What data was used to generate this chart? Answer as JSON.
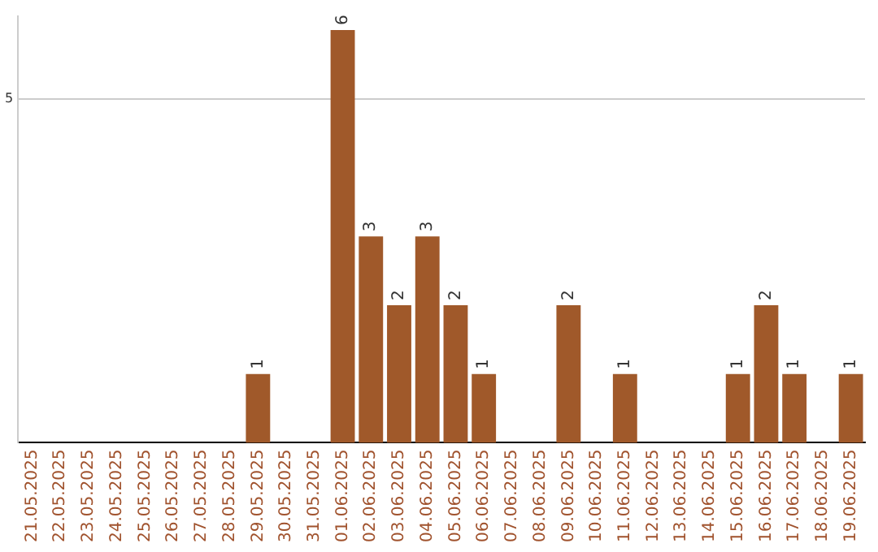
{
  "chart_data": {
    "type": "bar",
    "categories": [
      "21.05.2025",
      "22.05.2025",
      "23.05.2025",
      "24.05.2025",
      "25.05.2025",
      "26.05.2025",
      "27.05.2025",
      "28.05.2025",
      "29.05.2025",
      "30.05.2025",
      "31.05.2025",
      "01.06.2025",
      "02.06.2025",
      "03.06.2025",
      "04.06.2025",
      "05.06.2025",
      "06.06.2025",
      "07.06.2025",
      "08.06.2025",
      "09.06.2025",
      "10.06.2025",
      "11.06.2025",
      "12.06.2025",
      "13.06.2025",
      "14.06.2025",
      "15.06.2025",
      "16.06.2025",
      "17.06.2025",
      "18.06.2025",
      "19.06.2025"
    ],
    "values": [
      0,
      0,
      0,
      0,
      0,
      0,
      0,
      0,
      1,
      0,
      0,
      6,
      3,
      2,
      3,
      2,
      1,
      0,
      0,
      2,
      0,
      1,
      0,
      0,
      0,
      1,
      2,
      1,
      0,
      1
    ],
    "value_labels": [
      null,
      null,
      null,
      null,
      null,
      null,
      null,
      null,
      "1",
      null,
      null,
      "6",
      "3",
      "2",
      "3",
      "2",
      "1",
      null,
      null,
      "2",
      null,
      "1",
      null,
      null,
      null,
      "1",
      "2",
      "1",
      null,
      "1"
    ],
    "color": "#a0592a",
    "ylim": [
      0,
      6.2
    ],
    "yticks": [
      5
    ],
    "grid": "y",
    "legend": false
  }
}
